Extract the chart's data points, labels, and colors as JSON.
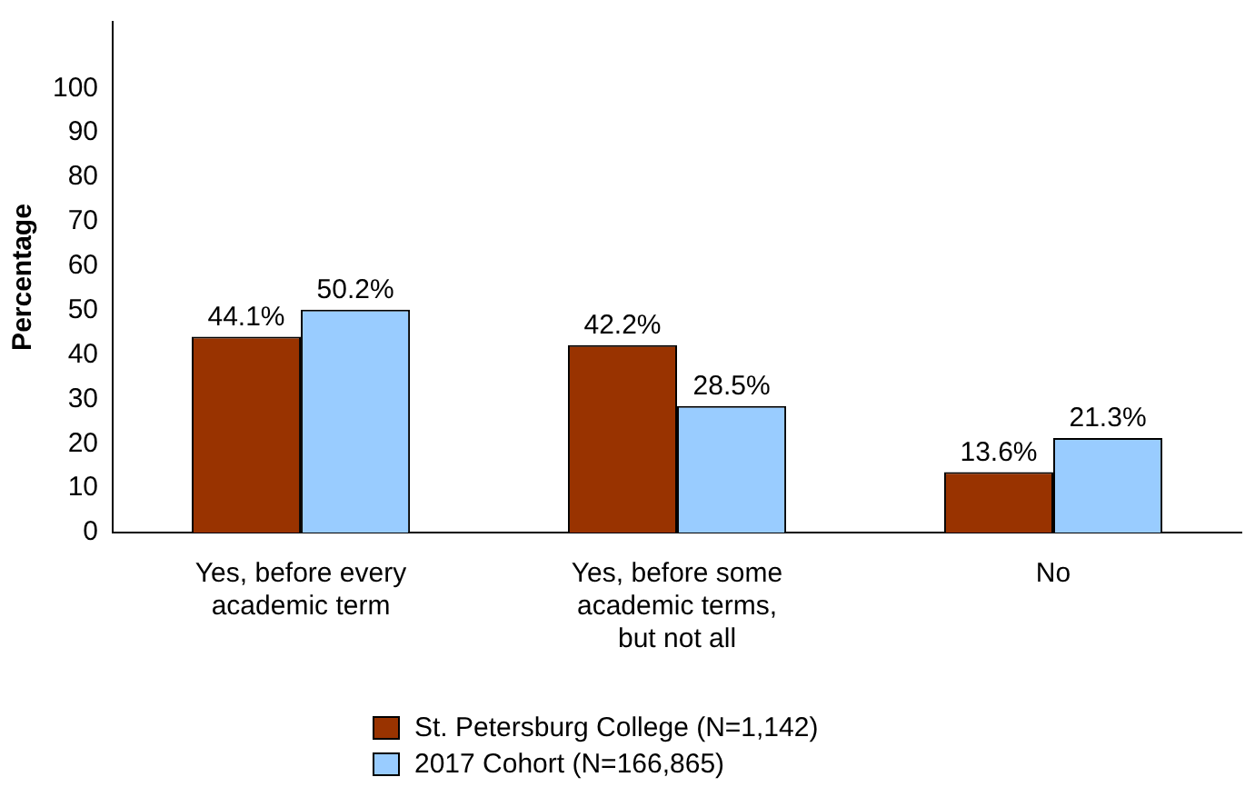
{
  "chart_data": {
    "type": "bar",
    "ylabel": "Percentage",
    "categories": [
      "Yes, before every academic term",
      "Yes, before some academic terms, but not all",
      "No"
    ],
    "series": [
      {
        "name": "St. Petersburg College (N=1,142)",
        "color": "#993300",
        "values": [
          44.1,
          42.2,
          13.6
        ],
        "value_labels": [
          "44.1%",
          "42.2%",
          "13.6%"
        ]
      },
      {
        "name": "2017 Cohort (N=166,865)",
        "color": "#99ccff",
        "values": [
          50.2,
          28.5,
          21.3
        ],
        "value_labels": [
          "50.2%",
          "28.5%",
          "21.3%"
        ]
      }
    ],
    "ylim": [
      0,
      115
    ],
    "yticks": [
      0,
      10,
      20,
      30,
      40,
      50,
      60,
      70,
      80,
      90,
      100
    ],
    "grid": false,
    "legend": "bottom"
  }
}
